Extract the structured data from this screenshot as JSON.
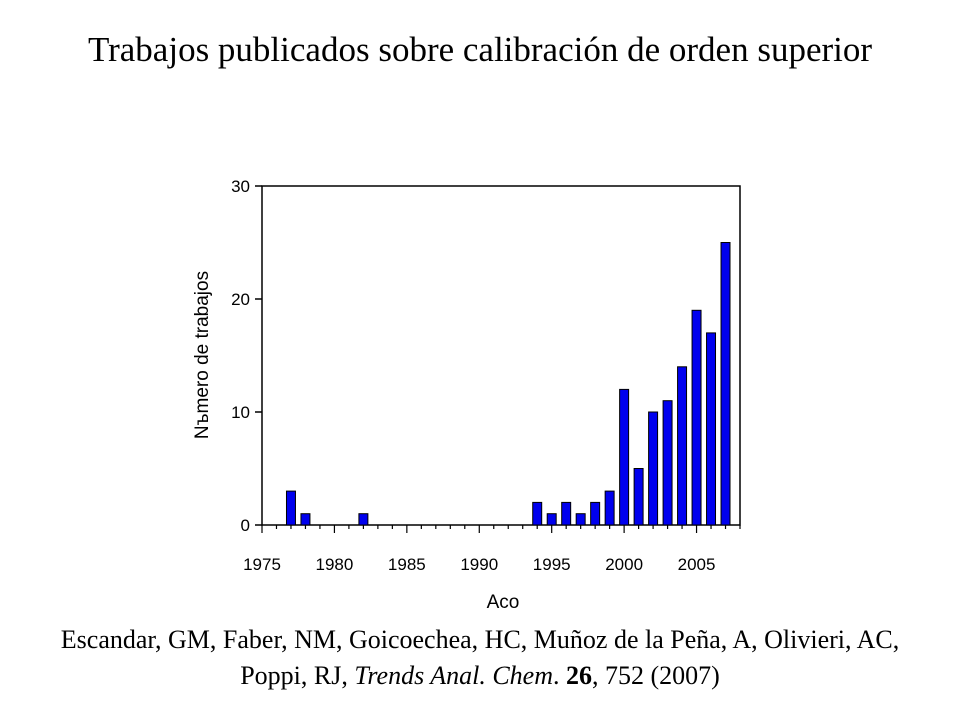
{
  "slide": {
    "title": "Trabajos publicados sobre calibración de orden superior",
    "citation": {
      "authors": "Escandar, GM, Faber, NM, Goicoechea, HC, Muñoz de la Peña, A, Olivieri, AC, Poppi, RJ,",
      "journal": "Trends Anal. Chem",
      "journal_punct": ".",
      "volume": "26",
      "pages_year": ", 752 (2007)"
    }
  },
  "chart_data": {
    "type": "bar",
    "title": "",
    "xlabel": "Aсo",
    "ylabel": "Nъmero de trabajos",
    "xlim": [
      1975,
      2008
    ],
    "ylim": [
      0,
      30
    ],
    "x_ticks": [
      1975,
      1980,
      1985,
      1990,
      1995,
      2000,
      2005
    ],
    "y_ticks": [
      0,
      10,
      20,
      30
    ],
    "grid": false,
    "legend": "none",
    "bar_color": "#0000ee",
    "points": [
      {
        "x": 1977,
        "y": 3
      },
      {
        "x": 1978,
        "y": 1
      },
      {
        "x": 1982,
        "y": 1
      },
      {
        "x": 1994,
        "y": 2
      },
      {
        "x": 1995,
        "y": 1
      },
      {
        "x": 1996,
        "y": 2
      },
      {
        "x": 1997,
        "y": 1
      },
      {
        "x": 1998,
        "y": 2
      },
      {
        "x": 1999,
        "y": 3
      },
      {
        "x": 2000,
        "y": 12
      },
      {
        "x": 2001,
        "y": 5
      },
      {
        "x": 2002,
        "y": 10
      },
      {
        "x": 2003,
        "y": 11
      },
      {
        "x": 2004,
        "y": 14
      },
      {
        "x": 2005,
        "y": 19
      },
      {
        "x": 2006,
        "y": 17
      },
      {
        "x": 2007,
        "y": 25
      }
    ]
  }
}
